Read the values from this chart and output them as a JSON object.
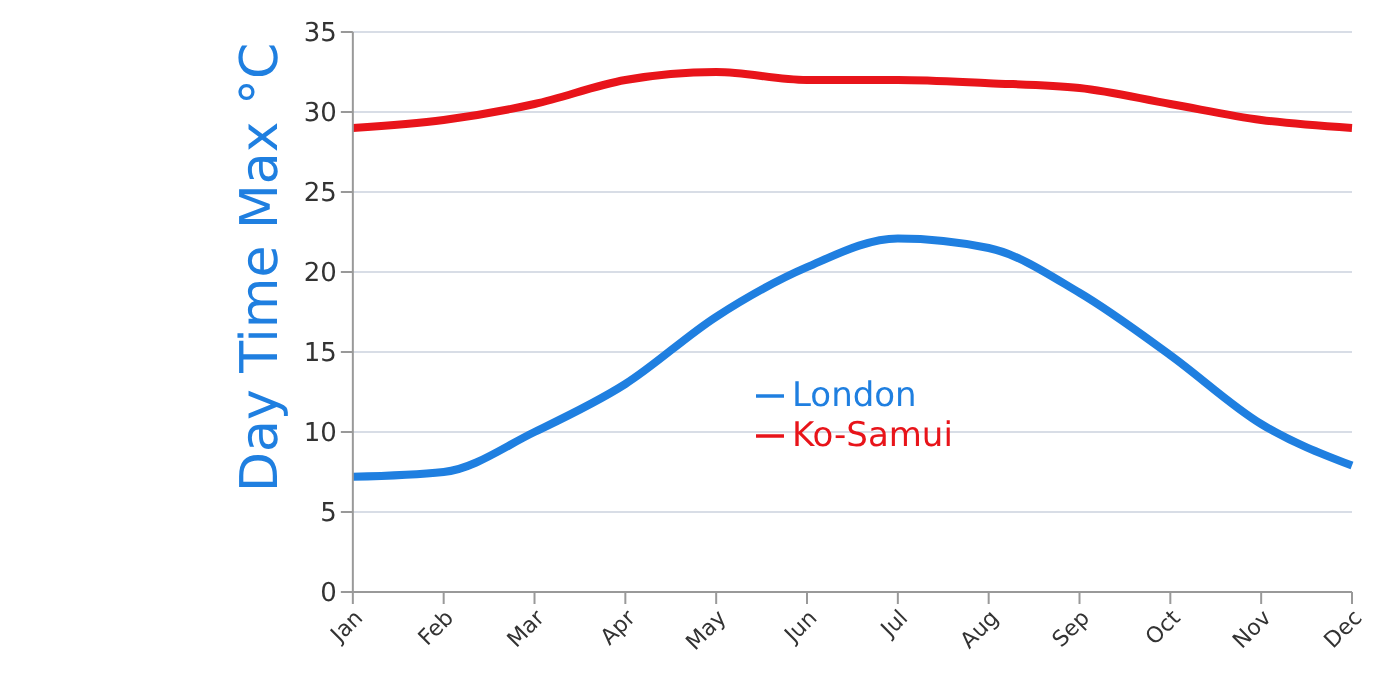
{
  "chart_data": {
    "type": "line",
    "ylabel": "Day Time Max °C",
    "categories": [
      "Jan",
      "Feb",
      "Mar",
      "Apr",
      "May",
      "Jun",
      "Jul",
      "Aug",
      "Sep",
      "Oct",
      "Nov",
      "Dec"
    ],
    "series": [
      {
        "name": "London",
        "color": "#1f7fe0",
        "values": [
          7.2,
          7.5,
          10,
          13,
          17.2,
          20.3,
          22.1,
          21.5,
          18.7,
          14.8,
          10.5,
          7.9
        ]
      },
      {
        "name": "Ko-Samui",
        "color": "#e8141a",
        "values": [
          29,
          29.5,
          30.5,
          32,
          32.5,
          32,
          32,
          31.8,
          31.5,
          30.5,
          29.5,
          29
        ]
      }
    ],
    "ylim": [
      0,
      35
    ],
    "yticks": [
      0,
      5,
      10,
      15,
      20,
      25,
      30,
      35
    ],
    "grid": "y",
    "legend": "center",
    "marker": "none",
    "line_style": "solid"
  }
}
